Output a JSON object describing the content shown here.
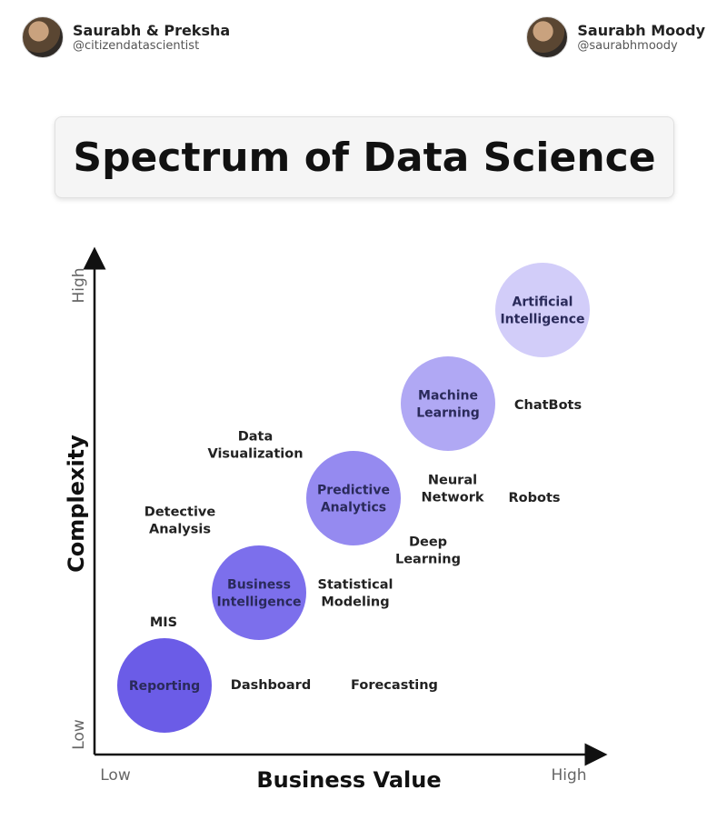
{
  "authors": {
    "left": {
      "name": "Saurabh & Preksha",
      "handle": "@citizendatascientist"
    },
    "right": {
      "name": "Saurabh Moody",
      "handle": "@saurabhmoody"
    }
  },
  "title": "Spectrum of Data Science",
  "axes": {
    "x": {
      "title": "Business Value",
      "low": "Low",
      "high": "High"
    },
    "y": {
      "title": "Complexity",
      "low": "Low",
      "high": "High"
    }
  },
  "bubbles": [
    {
      "lines": [
        "Reporting"
      ],
      "color": "#6b5ce7"
    },
    {
      "lines": [
        "Business",
        "Intelligence"
      ],
      "color": "#7c6fec"
    },
    {
      "lines": [
        "Predictive",
        "Analytics"
      ],
      "color": "#958af0"
    },
    {
      "lines": [
        "Machine",
        "Learning"
      ],
      "color": "#b0a8f4"
    },
    {
      "lines": [
        "Artificial",
        "Intelligence"
      ],
      "color": "#d2cdf9"
    }
  ],
  "items": [
    {
      "lines": [
        "MIS"
      ]
    },
    {
      "lines": [
        "Dashboard"
      ]
    },
    {
      "lines": [
        "Forecasting"
      ]
    },
    {
      "lines": [
        "Detective",
        "Analysis"
      ]
    },
    {
      "lines": [
        "Statistical",
        "Modeling"
      ]
    },
    {
      "lines": [
        "Data",
        "Visualization"
      ]
    },
    {
      "lines": [
        "Deep",
        "Learning"
      ]
    },
    {
      "lines": [
        "Neural",
        "Network"
      ]
    },
    {
      "lines": [
        "Robots"
      ]
    },
    {
      "lines": [
        "ChatBots"
      ]
    }
  ]
}
